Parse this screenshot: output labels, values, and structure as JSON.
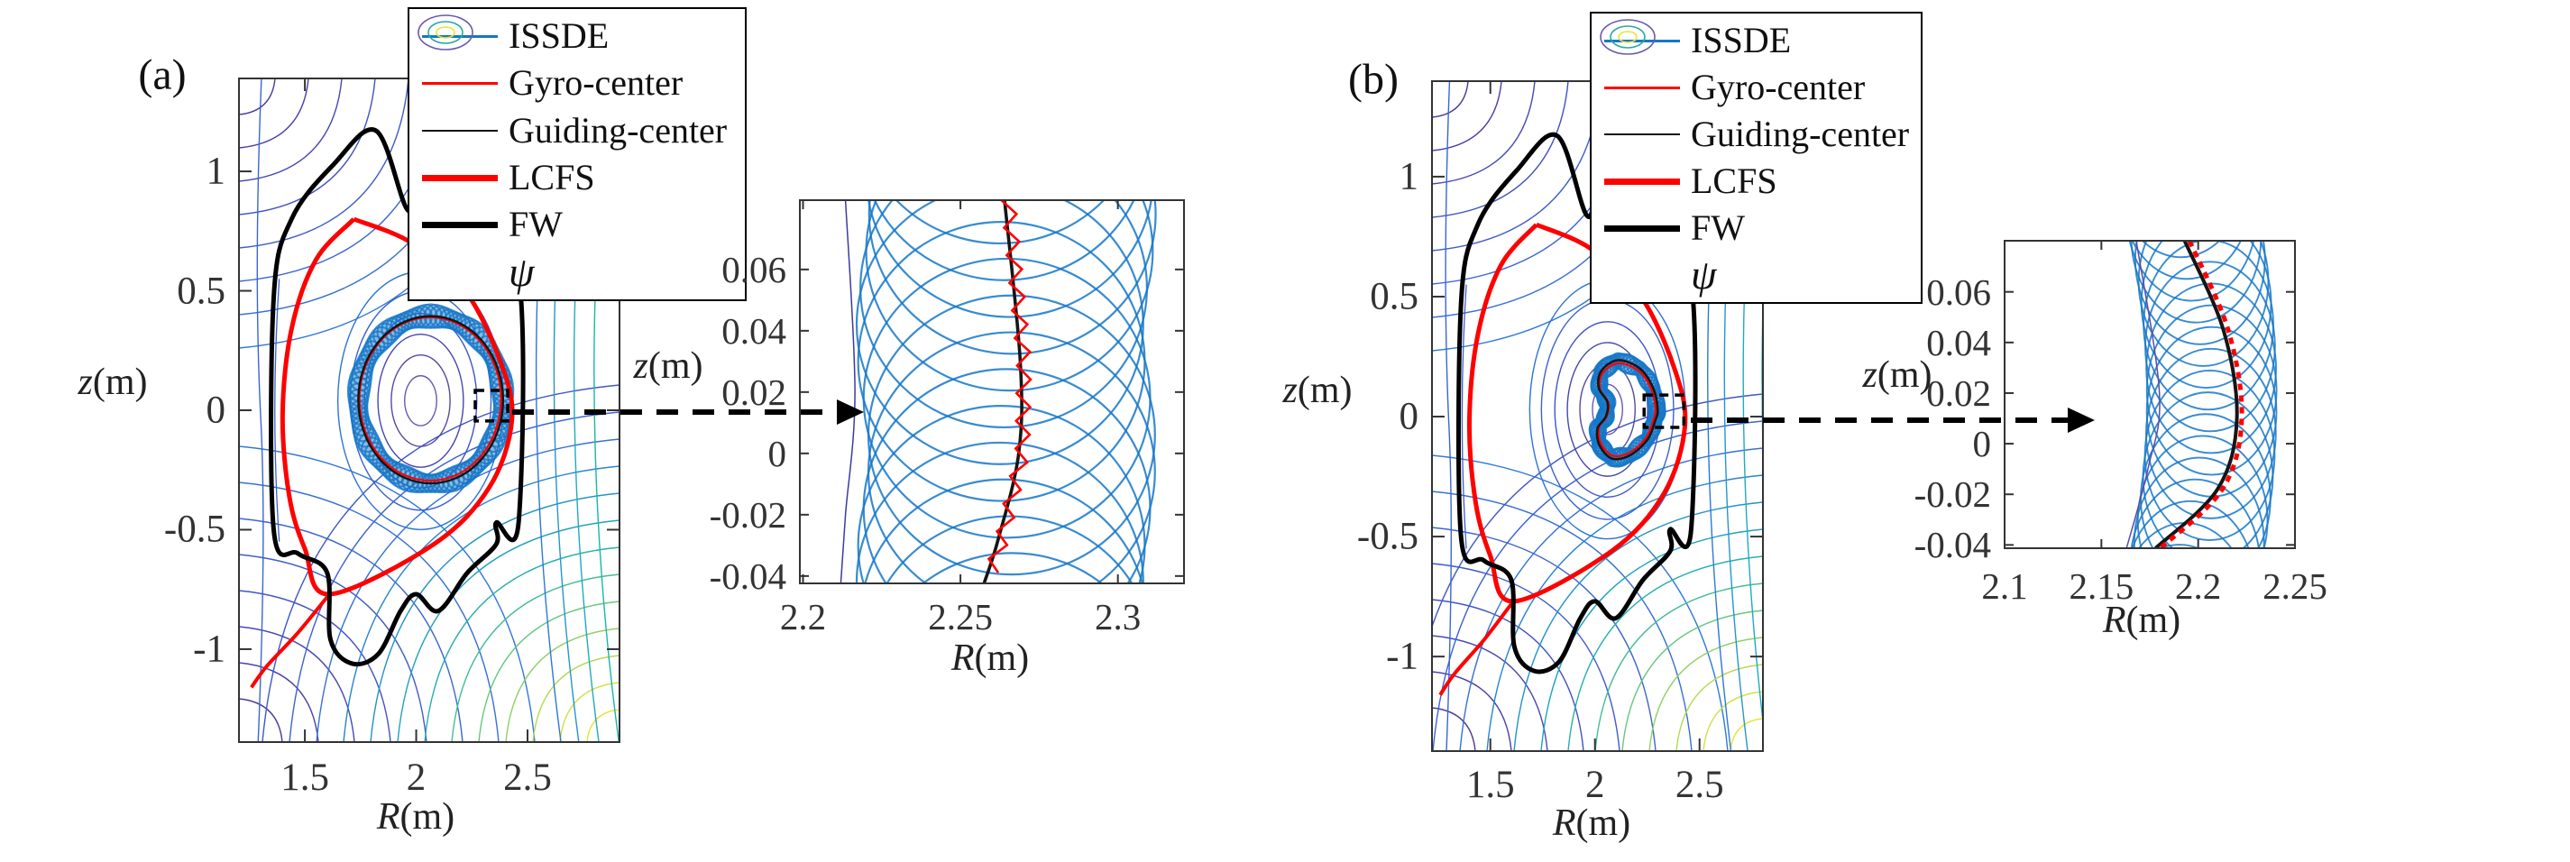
{
  "figure": {
    "bg": "#ffffff",
    "description": "Tokamak poloidal cross-sections comparing full-orbit (ISSDE), gyro-center and guiding-center trajectories with zoomed insets"
  },
  "colors": {
    "issde_blue": "#1577c8",
    "gyro_red": "#ff0000",
    "guiding_black": "#151515",
    "lcfs_red": "#ff0000",
    "fw_black": "#000000",
    "frame": "#333333",
    "arrow_black": "#000000"
  },
  "panels": [
    {
      "label": "(a)",
      "legend": {
        "entries": [
          {
            "label": "ISSDE",
            "swatch": "line",
            "color": "#1577c8",
            "thickness": 3
          },
          {
            "label": "Gyro-center",
            "swatch": "line",
            "color": "#ff0000",
            "thickness": 3
          },
          {
            "label": "Guiding-center",
            "swatch": "line",
            "color": "#151515",
            "thickness": 2
          },
          {
            "label": "LCFS",
            "swatch": "line",
            "color": "#ff0000",
            "thickness": 7
          },
          {
            "label": "FW",
            "swatch": "line",
            "color": "#000000",
            "thickness": 7
          },
          {
            "label": "ψ",
            "swatch": "contour-icon",
            "colors": [
              "#6a58b0",
              "#2aa8a0",
              "#e8e337"
            ]
          }
        ]
      }
    },
    {
      "label": "(b)",
      "legend": {
        "entries": [
          {
            "label": "ISSDE",
            "swatch": "line",
            "color": "#1577c8",
            "thickness": 3
          },
          {
            "label": "Gyro-center",
            "swatch": "line",
            "color": "#ff0000",
            "thickness": 3
          },
          {
            "label": "Guiding-center",
            "swatch": "line",
            "color": "#151515",
            "thickness": 2
          },
          {
            "label": "LCFS",
            "swatch": "line",
            "color": "#ff0000",
            "thickness": 7
          },
          {
            "label": "FW",
            "swatch": "line",
            "color": "#000000",
            "thickness": 7
          },
          {
            "label": "ψ",
            "swatch": "contour-icon",
            "colors": [
              "#6a58b0",
              "#2aa8a0",
              "#e8e337"
            ]
          }
        ]
      }
    }
  ],
  "chart_data": [
    {
      "id": "a-main",
      "type": "line",
      "xlabel": "R(m)",
      "ylabel": "z(m)",
      "xlabel_i": "R",
      "xlabel_u": "(m)",
      "ylabel_i": "z",
      "ylabel_u": "(m)",
      "xlim": [
        1.204,
        2.913
      ],
      "ylim": [
        -1.389,
        1.389
      ],
      "xticks": [
        1.5,
        2,
        2.5
      ],
      "yticks": [
        1,
        0.5,
        0,
        -0.5,
        -1
      ],
      "grid": false,
      "magnetic_axis": [
        2.02,
        0.04
      ],
      "series": [
        {
          "name": "ISSDE",
          "kind": "orbit_band",
          "center": [
            2.065,
            0.044
          ],
          "rx": 0.325,
          "ry": 0.35,
          "gyro_radius": 0.043,
          "color": "#1577c8"
        },
        {
          "name": "Gyro-center",
          "kind": "ellipse",
          "center": [
            2.063,
            0.047
          ],
          "rx": 0.318,
          "ry": 0.342,
          "color": "#ff0000",
          "width": 2.2
        },
        {
          "name": "Guiding-center",
          "kind": "ellipse",
          "center": [
            2.065,
            0.044
          ],
          "rx": 0.325,
          "ry": 0.35,
          "color": "#151515",
          "width": 2.4
        },
        {
          "name": "LCFS",
          "kind": "path",
          "color": "#ff0000",
          "width": 5,
          "closed": false,
          "points": [
            [
              1.72,
              0.8
            ],
            [
              1.98,
              0.7
            ],
            [
              2.22,
              0.5
            ],
            [
              2.38,
              0.2
            ],
            [
              2.43,
              -0.04
            ],
            [
              2.33,
              -0.32
            ],
            [
              2.08,
              -0.56
            ],
            [
              1.61,
              -0.77
            ],
            [
              1.5,
              -0.58
            ],
            [
              1.43,
              -0.36
            ],
            [
              1.4,
              -0.02
            ],
            [
              1.44,
              0.34
            ],
            [
              1.55,
              0.63
            ],
            [
              1.72,
              0.8
            ]
          ]
        },
        {
          "name": "LCFS-divertor-leg",
          "kind": "path",
          "color": "#ff0000",
          "width": 4,
          "closed": false,
          "points": [
            [
              1.61,
              -0.77
            ],
            [
              1.47,
              -0.93
            ],
            [
              1.33,
              -1.07
            ],
            [
              1.26,
              -1.16
            ]
          ]
        },
        {
          "name": "FW",
          "kind": "path",
          "color": "#000000",
          "width": 5,
          "closed": true,
          "points": [
            [
              1.36,
              -0.5
            ],
            [
              1.36,
              0.47
            ],
            [
              1.44,
              0.8
            ],
            [
              1.63,
              1.03
            ],
            [
              1.82,
              1.17
            ],
            [
              1.96,
              0.84
            ],
            [
              2.03,
              0.92
            ],
            [
              2.25,
              0.74
            ],
            [
              2.46,
              0.56
            ],
            [
              2.46,
              -0.47
            ],
            [
              2.36,
              -0.47
            ],
            [
              2.36,
              -0.56
            ],
            [
              2.23,
              -0.68
            ],
            [
              2.1,
              -0.84
            ],
            [
              2.0,
              -0.77
            ],
            [
              1.93,
              -0.84
            ],
            [
              1.83,
              -1.02
            ],
            [
              1.71,
              -1.06
            ],
            [
              1.615,
              -0.96
            ],
            [
              1.6,
              -0.68
            ],
            [
              1.47,
              -0.6
            ]
          ]
        },
        {
          "name": "psi",
          "kind": "contour_background"
        }
      ],
      "zoom_box": {
        "x": [
          2.265,
          2.411
        ],
        "y": [
          -0.045,
          0.083
        ]
      }
    },
    {
      "id": "a-inset",
      "type": "line",
      "xlabel": "R(m)",
      "ylabel": "z(m)",
      "xlabel_i": "R",
      "xlabel_u": "(m)",
      "ylabel_i": "z",
      "ylabel_u": "(m)",
      "xlim": [
        2.199,
        2.321
      ],
      "ylim": [
        -0.0424,
        0.0826
      ],
      "xticks": [
        2.2,
        2.25,
        2.3
      ],
      "yticks": [
        0.06,
        0.04,
        0.02,
        0,
        -0.02,
        -0.04
      ],
      "grid": false,
      "series": [
        {
          "name": "ISSDE",
          "kind": "gyro_circles",
          "center_R": 2.2645,
          "wiggle": 0.002,
          "z0": -0.09,
          "dz": 0.012,
          "n": 18,
          "r": 0.0455,
          "color": "#1577c8"
        },
        {
          "name": "Guiding-center",
          "kind": "curve",
          "color": "#151515",
          "width": 3.6,
          "points": [
            [
              2.264,
              0.0826
            ],
            [
              2.269,
              0.03
            ],
            [
              2.2685,
              0.0
            ],
            [
              2.262,
              -0.028
            ],
            [
              2.2575,
              -0.0424
            ]
          ]
        },
        {
          "name": "Gyro-center",
          "kind": "zigzag",
          "color": "#ff0000",
          "width": 2.6,
          "amp": 0.0022,
          "step": 0.0045,
          "dx": 0.0012
        },
        {
          "name": "psi-contour",
          "kind": "curve",
          "color": "#3b3b9e",
          "width": 1.5,
          "points": [
            [
              2.2135,
              0.0826
            ],
            [
              2.2165,
              0.02
            ],
            [
              2.2135,
              -0.02
            ],
            [
              2.212,
              -0.0424
            ]
          ]
        }
      ]
    },
    {
      "id": "b-main",
      "type": "line",
      "xlabel": "R(m)",
      "ylabel": "z(m)",
      "xlabel_i": "R",
      "xlabel_u": "(m)",
      "ylabel_i": "z",
      "ylabel_u": "(m)",
      "xlim": [
        1.221,
        2.803
      ],
      "ylim": [
        -1.394,
        1.398
      ],
      "xticks": [
        1.5,
        2,
        2.5
      ],
      "yticks": [
        1,
        0.5,
        0,
        -0.5,
        -1
      ],
      "grid": false,
      "magnetic_axis": [
        2.06,
        0.03
      ],
      "equilibrium_same_as": "a-main",
      "series": [
        {
          "name": "ISSDE",
          "kind": "orbit_band_path",
          "gyro_radius": 0.034,
          "color": "#1577c8",
          "points": [
            [
              2.3,
              0.03
            ],
            [
              2.278,
              0.12
            ],
            [
              2.215,
              0.2
            ],
            [
              2.11,
              0.235
            ],
            [
              2.03,
              0.19
            ],
            [
              2.018,
              0.12
            ],
            [
              2.06,
              0.06
            ],
            [
              2.052,
              0.0
            ],
            [
              2.012,
              -0.05
            ],
            [
              2.022,
              -0.12
            ],
            [
              2.082,
              -0.175
            ],
            [
              2.17,
              -0.16
            ],
            [
              2.252,
              -0.095
            ],
            [
              2.287,
              -0.02
            ]
          ]
        },
        {
          "name": "Gyro-center",
          "kind": "bean_red",
          "color": "#ff0000",
          "width": 2.2,
          "shrink": 0.94
        },
        {
          "name": "Guiding-center",
          "kind": "bean_black",
          "color": "#151515",
          "width": 2.6
        },
        {
          "name": "psi",
          "kind": "contour_background"
        }
      ],
      "zoom_box": {
        "x": [
          2.235,
          2.425
        ],
        "y": [
          -0.045,
          0.09
        ]
      }
    },
    {
      "id": "b-inset",
      "type": "line",
      "xlabel": "R(m)",
      "ylabel": "z(m)",
      "xlabel_i": "R",
      "xlabel_u": "(m)",
      "ylabel_i": "z",
      "ylabel_u": "(m)",
      "xlim": [
        2.1,
        2.25
      ],
      "ylim": [
        -0.0413,
        0.0802
      ],
      "xticks": [
        2.1,
        2.15,
        2.2,
        2.25
      ],
      "yticks": [
        0.06,
        0.04,
        0.02,
        0,
        -0.02,
        -0.04
      ],
      "grid": false,
      "series": [
        {
          "name": "ISSDE",
          "kind": "gyro_circles_arc",
          "z0": -0.082,
          "dz": 0.0086,
          "n": 24,
          "r": 0.0335,
          "base": 2.187,
          "bow": 0.02,
          "zc": 0.018,
          "zw": 0.1,
          "color": "#1577c8"
        },
        {
          "name": "Guiding-center",
          "kind": "curve",
          "color": "#151515",
          "width": 4,
          "points": [
            [
              2.193,
              0.0802
            ],
            [
              2.213,
              0.045
            ],
            [
              2.22,
              0.01
            ],
            [
              2.21,
              -0.018
            ],
            [
              2.178,
              -0.0413
            ]
          ]
        },
        {
          "name": "Gyro-center",
          "kind": "dashed_offset",
          "color": "#ff0000",
          "width": 5,
          "dx": 0.0025,
          "dash": "7 6"
        },
        {
          "name": "psi-contour",
          "kind": "curve",
          "color": "#5b4aa8",
          "width": 1.5,
          "points": [
            [
              2.168,
              0.0802
            ],
            [
              2.18,
              0.02
            ],
            [
              2.174,
              -0.01
            ],
            [
              2.163,
              -0.0413
            ]
          ]
        }
      ]
    }
  ]
}
